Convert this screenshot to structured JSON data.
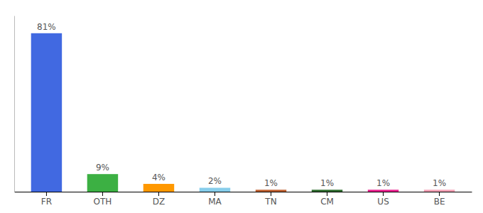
{
  "chart_data": {
    "type": "bar",
    "categories": [
      "FR",
      "OTH",
      "DZ",
      "MA",
      "TN",
      "CM",
      "US",
      "BE"
    ],
    "values": [
      81,
      9,
      4,
      2,
      1,
      1,
      1,
      1
    ],
    "value_labels": [
      "81%",
      "9%",
      "4%",
      "2%",
      "1%",
      "1%",
      "1%",
      "1%"
    ],
    "colors": [
      "#4169e1",
      "#3cb043",
      "#ff9800",
      "#87ceeb",
      "#bf6030",
      "#2e6b2e",
      "#e91e8c",
      "#f4a0b5"
    ],
    "ylim": [
      0,
      90
    ],
    "grid": false,
    "data_labels": true,
    "tick_labels": "x"
  }
}
